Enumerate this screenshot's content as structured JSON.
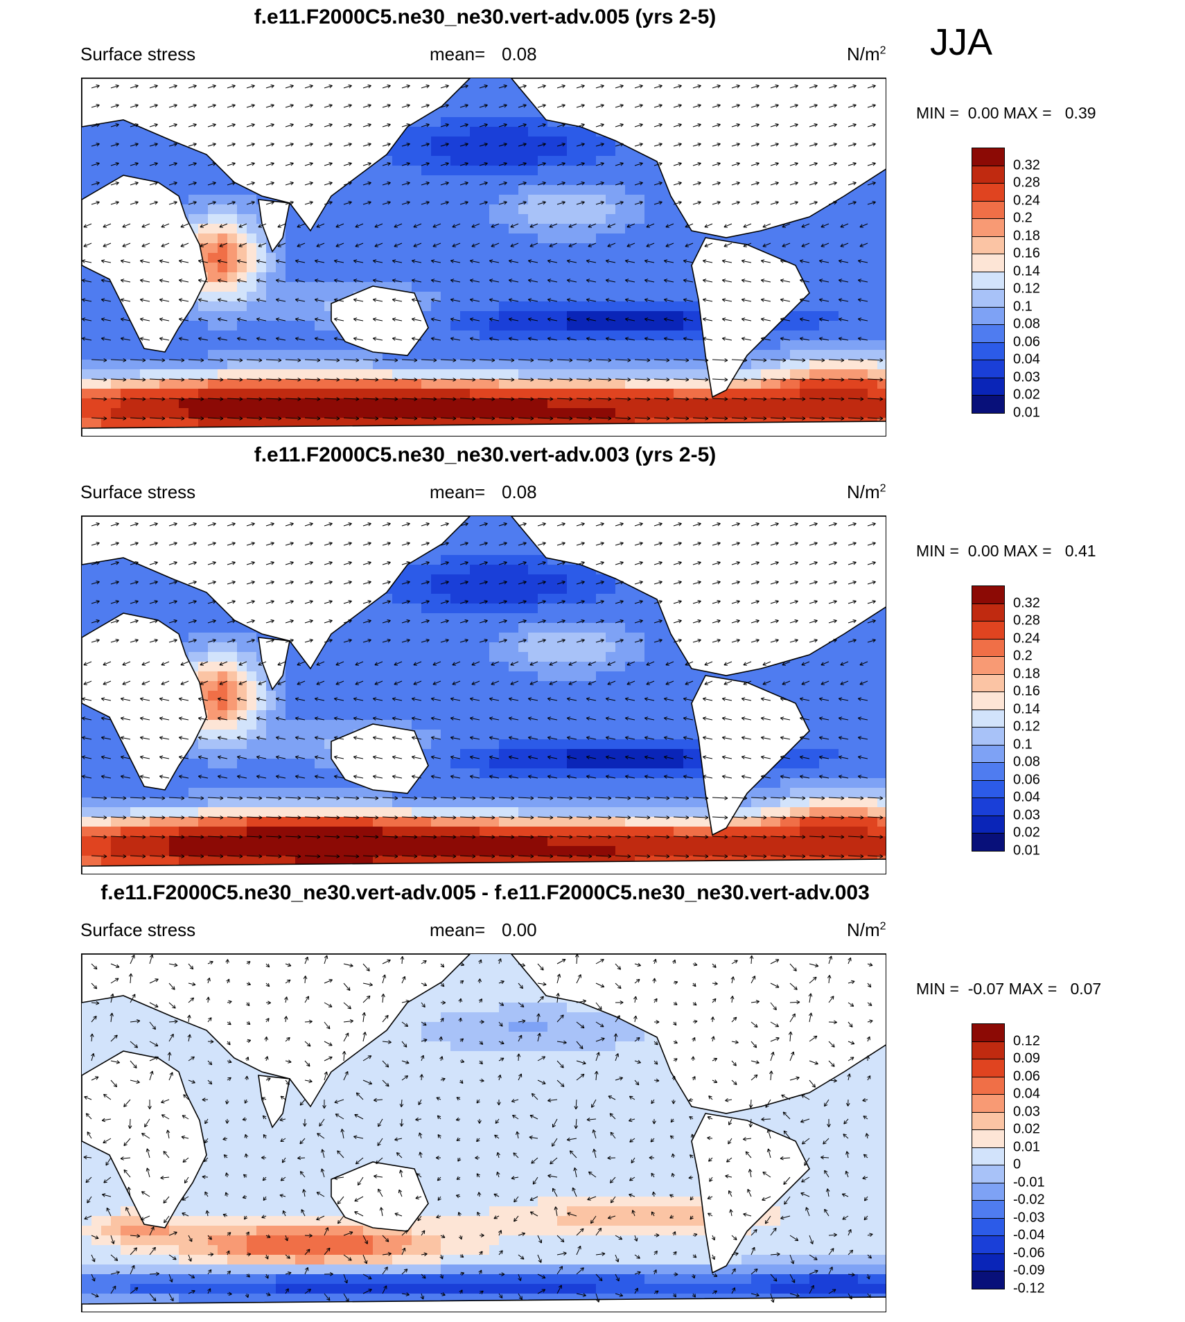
{
  "season": "JJA",
  "colors": {
    "abs_scale": [
      "#08107a",
      "#0a25b8",
      "#1a3fd8",
      "#2c5be8",
      "#4f7cf0",
      "#7ea2f5",
      "#a8c2f8",
      "#d2e3fb",
      "#fde5d6",
      "#fbc4a4",
      "#f89a74",
      "#f06f47",
      "#e04420",
      "#c02a10",
      "#8c0a05"
    ],
    "diff_scale": [
      "#08107a",
      "#0a25b8",
      "#1a3fd8",
      "#2c5be8",
      "#4f7cf0",
      "#7ea2f5",
      "#a8c2f8",
      "#d2e3fb",
      "#fde5d6",
      "#fbc4a4",
      "#f89a74",
      "#f06f47",
      "#e04420",
      "#c02a10",
      "#8c0a05"
    ]
  },
  "panels": [
    {
      "title": "f.e11.F2000C5.ne30_ne30.vert-adv.005 (yrs 2-5)",
      "left_label": "Surface stress",
      "mean_label": "mean=",
      "mean_value": "0.08",
      "unit_base": "N/m",
      "unit_exp": "2",
      "min_label": "MIN =",
      "min_value": "0.00",
      "max_label": "MAX =",
      "max_value": "0.39"
    },
    {
      "title": "f.e11.F2000C5.ne30_ne30.vert-adv.003 (yrs 2-5)",
      "left_label": "Surface stress",
      "mean_label": "mean=",
      "mean_value": "0.08",
      "unit_base": "N/m",
      "unit_exp": "2",
      "min_label": "MIN =",
      "min_value": "0.00",
      "max_label": "MAX =",
      "max_value": "0.41"
    },
    {
      "title": "f.e11.F2000C5.ne30_ne30.vert-adv.005 - f.e11.F2000C5.ne30_ne30.vert-adv.003",
      "left_label": "Surface stress",
      "mean_label": "mean=",
      "mean_value": "0.00",
      "unit_base": "N/m",
      "unit_exp": "2",
      "min_label": "MIN =",
      "min_value": "-0.07",
      "max_label": "MAX =",
      "max_value": "0.07"
    }
  ],
  "chart_data": [
    {
      "type": "heatmap",
      "title": "f.e11.F2000C5.ne30_ne30.vert-adv.005 (yrs 2-5)",
      "variable": "Surface stress",
      "units": "N/m2",
      "mean": 0.08,
      "min": 0.0,
      "max": 0.39,
      "colorbar_levels": [
        "0.32",
        "0.28",
        "0.24",
        "0.2",
        "0.18",
        "0.16",
        "0.14",
        "0.12",
        "0.1",
        "0.08",
        "0.06",
        "0.04",
        "0.03",
        "0.02",
        "0.01"
      ]
    },
    {
      "type": "heatmap",
      "title": "f.e11.F2000C5.ne30_ne30.vert-adv.003 (yrs 2-5)",
      "variable": "Surface stress",
      "units": "N/m2",
      "mean": 0.08,
      "min": 0.0,
      "max": 0.41,
      "colorbar_levels": [
        "0.32",
        "0.28",
        "0.24",
        "0.2",
        "0.18",
        "0.16",
        "0.14",
        "0.12",
        "0.1",
        "0.08",
        "0.06",
        "0.04",
        "0.03",
        "0.02",
        "0.01"
      ]
    },
    {
      "type": "heatmap",
      "title": "f.e11.F2000C5.ne30_ne30.vert-adv.005 - f.e11.F2000C5.ne30_ne30.vert-adv.003",
      "variable": "Surface stress",
      "units": "N/m2",
      "mean": 0.0,
      "min": -0.07,
      "max": 0.07,
      "colorbar_levels": [
        "0.12",
        "0.09",
        "0.06",
        "0.04",
        "0.03",
        "0.02",
        "0.01",
        "0",
        "-0.01",
        "-0.02",
        "-0.03",
        "-0.04",
        "-0.06",
        "-0.09",
        "-0.12"
      ]
    }
  ]
}
